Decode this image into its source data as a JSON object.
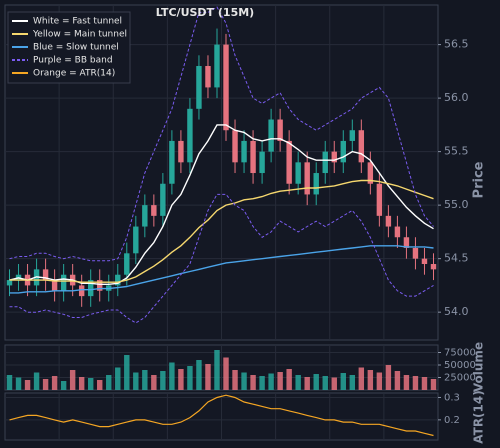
{
  "chart_data": [
    {
      "type": "candlestick",
      "title": "LTC/USDT (15M)",
      "y_label": "Price",
      "up_color": "#26a69a",
      "down_color": "#e5737f",
      "open": [
        54.25,
        54.3,
        54.35,
        54.25,
        54.4,
        54.3,
        54.2,
        54.35,
        54.25,
        54.15,
        54.3,
        54.2,
        54.25,
        54.35,
        54.55,
        54.8,
        55.0,
        54.9,
        55.2,
        55.6,
        55.4,
        55.9,
        56.3,
        56.1,
        56.5,
        55.7,
        55.4,
        55.6,
        55.3,
        55.5,
        55.8,
        55.6,
        55.2,
        55.4,
        55.1,
        55.3,
        55.5,
        55.4,
        55.6,
        55.7,
        55.4,
        55.2,
        54.9,
        54.8,
        54.7,
        54.6,
        54.5,
        54.45
      ],
      "high": [
        54.4,
        54.45,
        54.45,
        54.5,
        54.5,
        54.4,
        54.45,
        54.45,
        54.35,
        54.4,
        54.4,
        54.35,
        54.45,
        54.65,
        54.9,
        55.1,
        55.1,
        55.3,
        55.7,
        55.7,
        56.0,
        56.4,
        56.4,
        56.65,
        56.6,
        55.8,
        55.7,
        55.7,
        55.6,
        55.9,
        55.9,
        55.7,
        55.5,
        55.5,
        55.4,
        55.6,
        55.6,
        55.7,
        55.8,
        55.8,
        55.5,
        55.3,
        55.0,
        54.9,
        54.8,
        54.7,
        54.6,
        54.55
      ],
      "low": [
        54.15,
        54.2,
        54.15,
        54.15,
        54.2,
        54.1,
        54.1,
        54.15,
        54.05,
        54.05,
        54.1,
        54.1,
        54.15,
        54.25,
        54.45,
        54.7,
        54.8,
        54.8,
        55.1,
        55.3,
        55.3,
        55.8,
        56.0,
        56.0,
        55.6,
        55.3,
        55.3,
        55.2,
        55.2,
        55.4,
        55.5,
        55.1,
        55.1,
        55.0,
        55.0,
        55.2,
        55.3,
        55.3,
        55.5,
        55.3,
        55.1,
        54.8,
        54.7,
        54.6,
        54.5,
        54.4,
        54.35,
        54.3
      ],
      "close": [
        54.3,
        54.35,
        54.25,
        54.4,
        54.3,
        54.2,
        54.35,
        54.25,
        54.15,
        54.3,
        54.2,
        54.25,
        54.35,
        54.55,
        54.8,
        55.0,
        54.9,
        55.2,
        55.6,
        55.4,
        55.9,
        56.3,
        56.1,
        56.5,
        55.7,
        55.4,
        55.6,
        55.3,
        55.5,
        55.8,
        55.6,
        55.2,
        55.4,
        55.1,
        55.3,
        55.5,
        55.4,
        55.6,
        55.7,
        55.4,
        55.2,
        54.9,
        54.8,
        54.7,
        54.6,
        54.5,
        54.45,
        54.4
      ],
      "series": [
        {
          "name": "White = Fast tunnel",
          "color": "#ffffff",
          "values": [
            54.3,
            54.32,
            54.3,
            54.33,
            54.32,
            54.3,
            54.31,
            54.3,
            54.27,
            54.27,
            54.26,
            54.26,
            54.27,
            54.32,
            54.42,
            54.55,
            54.65,
            54.8,
            55.0,
            55.1,
            55.28,
            55.48,
            55.6,
            55.75,
            55.75,
            55.7,
            55.68,
            55.62,
            55.6,
            55.62,
            55.62,
            55.58,
            55.52,
            55.45,
            55.42,
            55.42,
            55.42,
            55.45,
            55.5,
            55.48,
            55.42,
            55.3,
            55.18,
            55.08,
            54.98,
            54.9,
            54.83,
            54.78
          ]
        },
        {
          "name": "Yellow = Main tunnel",
          "color": "#f5d76e",
          "values": [
            54.3,
            54.3,
            54.3,
            54.3,
            54.3,
            54.29,
            54.29,
            54.29,
            54.28,
            54.28,
            54.28,
            54.28,
            54.28,
            54.3,
            54.33,
            54.38,
            54.43,
            54.49,
            54.56,
            54.62,
            54.7,
            54.79,
            54.86,
            54.95,
            55.0,
            55.02,
            55.05,
            55.06,
            55.08,
            55.11,
            55.13,
            55.14,
            55.15,
            55.16,
            55.16,
            55.17,
            55.18,
            55.2,
            55.22,
            55.23,
            55.23,
            55.22,
            55.2,
            55.18,
            55.15,
            55.12,
            55.09,
            55.06
          ]
        },
        {
          "name": "Blue = Slow tunnel",
          "color": "#4aa3e8",
          "values": [
            54.18,
            54.18,
            54.19,
            54.19,
            54.19,
            54.2,
            54.2,
            54.2,
            54.21,
            54.21,
            54.22,
            54.22,
            54.23,
            54.24,
            54.26,
            54.28,
            54.3,
            54.32,
            54.34,
            54.36,
            54.38,
            54.4,
            54.42,
            54.44,
            54.46,
            54.47,
            54.48,
            54.49,
            54.5,
            54.51,
            54.52,
            54.53,
            54.54,
            54.55,
            54.56,
            54.57,
            54.58,
            54.59,
            54.6,
            54.61,
            54.62,
            54.62,
            54.62,
            54.62,
            54.61,
            54.61,
            54.61,
            54.6
          ]
        },
        {
          "name": "Purple = BB band",
          "color": "#7a5cf0",
          "dashed": true,
          "upper": [
            54.5,
            54.52,
            54.52,
            54.55,
            54.55,
            54.52,
            54.5,
            54.52,
            54.5,
            54.48,
            54.48,
            54.48,
            54.5,
            54.7,
            55.0,
            55.3,
            55.5,
            55.7,
            55.9,
            56.2,
            56.5,
            56.8,
            56.8,
            56.85,
            56.7,
            56.4,
            56.2,
            56.0,
            55.95,
            56.0,
            56.05,
            55.9,
            55.8,
            55.75,
            55.7,
            55.75,
            55.8,
            55.85,
            55.9,
            56.0,
            56.05,
            56.1,
            56.0,
            55.7,
            55.4,
            55.1,
            54.9,
            54.8
          ],
          "lower": [
            54.05,
            54.05,
            54.0,
            54.0,
            54.02,
            54.0,
            53.98,
            53.95,
            53.95,
            53.98,
            54.0,
            54.02,
            54.02,
            53.95,
            53.9,
            53.95,
            54.05,
            54.15,
            54.25,
            54.35,
            54.45,
            54.7,
            54.95,
            55.1,
            55.1,
            55.0,
            54.95,
            54.8,
            54.7,
            54.75,
            54.85,
            54.8,
            54.75,
            54.8,
            54.85,
            54.8,
            54.85,
            54.9,
            54.95,
            54.85,
            54.7,
            54.5,
            54.3,
            54.2,
            54.15,
            54.15,
            54.2,
            54.25
          ]
        }
      ],
      "ylim": [
        53.74,
        56.87
      ],
      "yticks": [
        {
          "value": 54,
          "label": "54.0"
        },
        54.5,
        {
          "value": 55,
          "label": "55.0"
        },
        55.5,
        {
          "value": 56,
          "label": "56.0"
        },
        56.5
      ],
      "grid": true,
      "legend": "upper left"
    },
    {
      "type": "bar",
      "y_label": "Volume",
      "values": [
        30000,
        25000,
        20000,
        35000,
        22000,
        28000,
        18000,
        40000,
        26000,
        24000,
        20000,
        30000,
        45000,
        70000,
        35000,
        40000,
        30000,
        38000,
        55000,
        42000,
        48000,
        60000,
        52000,
        80000,
        65000,
        40000,
        35000,
        30000,
        28000,
        33000,
        36000,
        42000,
        30000,
        26000,
        32000,
        28000,
        25000,
        34000,
        30000,
        45000,
        40000,
        35000,
        50000,
        38000,
        30000,
        28000,
        26000,
        22000
      ],
      "ylim": [
        0,
        90000
      ],
      "yticks": [
        25000,
        50000,
        75000
      ],
      "grid": true
    },
    {
      "type": "line",
      "y_label": "ATR(14)",
      "name": "Orange = ATR(14)",
      "color": "#f5a623",
      "values": [
        0.2,
        0.21,
        0.22,
        0.22,
        0.21,
        0.2,
        0.19,
        0.2,
        0.19,
        0.18,
        0.17,
        0.17,
        0.18,
        0.19,
        0.2,
        0.2,
        0.19,
        0.18,
        0.18,
        0.19,
        0.21,
        0.24,
        0.28,
        0.3,
        0.31,
        0.3,
        0.28,
        0.27,
        0.26,
        0.25,
        0.25,
        0.24,
        0.23,
        0.22,
        0.21,
        0.2,
        0.2,
        0.19,
        0.19,
        0.18,
        0.18,
        0.18,
        0.17,
        0.16,
        0.15,
        0.15,
        0.14,
        0.13
      ],
      "ylim": [
        0.11,
        0.32
      ],
      "yticks": [
        0.2,
        0.3
      ],
      "grid": true
    }
  ]
}
